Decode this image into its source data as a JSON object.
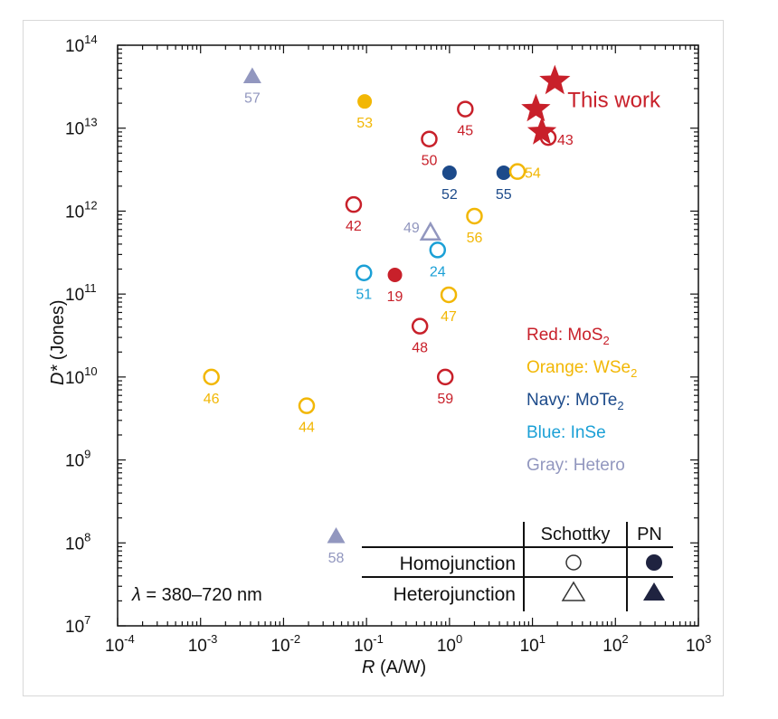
{
  "chart_data": {
    "type": "scatter",
    "xlabel": "R (A/W)",
    "xlabel_var": "R",
    "xlabel_unit": " (A/W)",
    "ylabel_var": "D*",
    "ylabel_unit": " (Jones)",
    "xscale": "log",
    "yscale": "log",
    "xlim": [
      0.0001,
      1000
    ],
    "ylim": [
      10000000.0,
      100000000000000.0
    ],
    "x_ticks": [
      -4,
      -3,
      -2,
      -1,
      0,
      1,
      2,
      3
    ],
    "y_ticks": [
      7,
      8,
      9,
      10,
      11,
      12,
      13,
      14
    ],
    "grid": false,
    "colors": {
      "red": "#c8202a",
      "orange": "#f2b705",
      "navy": "#1c4a8a",
      "blue": "#1ba0d6",
      "gray": "#9297bf",
      "legend": "#1f2340"
    },
    "points": [
      {
        "label": "57",
        "x": 0.0042,
        "y": 42000000000000.0,
        "color": "gray",
        "shape": "triangle",
        "filled": true
      },
      {
        "label": "53",
        "x": 0.095,
        "y": 21000000000000.0,
        "color": "orange",
        "shape": "circle",
        "filled": true
      },
      {
        "label": "45",
        "x": 1.55,
        "y": 17000000000000.0,
        "color": "red",
        "shape": "circle",
        "filled": false
      },
      {
        "label": "50",
        "x": 0.57,
        "y": 7400000000000.0,
        "color": "red",
        "shape": "circle",
        "filled": false
      },
      {
        "label": "52",
        "x": 1.0,
        "y": 2900000000000.0,
        "color": "navy",
        "shape": "circle",
        "filled": true
      },
      {
        "label": "55",
        "x": 4.5,
        "y": 2900000000000.0,
        "color": "navy",
        "shape": "circle",
        "filled": true
      },
      {
        "label": "54",
        "x": 6.6,
        "y": 3000000000000.0,
        "color": "orange",
        "shape": "circle",
        "filled": false
      },
      {
        "label": "43",
        "x": 15.5,
        "y": 7700000000000.0,
        "color": "red",
        "shape": "circle",
        "filled": false
      },
      {
        "label": "42",
        "x": 0.07,
        "y": 1200000000000.0,
        "color": "red",
        "shape": "circle",
        "filled": false
      },
      {
        "label": "56",
        "x": 2.0,
        "y": 870000000000.0,
        "color": "orange",
        "shape": "circle",
        "filled": false
      },
      {
        "label": "49",
        "x": 0.59,
        "y": 550000000000.0,
        "color": "gray",
        "shape": "triangle",
        "filled": false
      },
      {
        "label": "24",
        "x": 0.72,
        "y": 340000000000.0,
        "color": "blue",
        "shape": "circle",
        "filled": false
      },
      {
        "label": "51",
        "x": 0.093,
        "y": 180000000000.0,
        "color": "blue",
        "shape": "circle",
        "filled": false
      },
      {
        "label": "19",
        "x": 0.22,
        "y": 170000000000.0,
        "color": "red",
        "shape": "circle",
        "filled": true
      },
      {
        "label": "47",
        "x": 0.98,
        "y": 98000000000.0,
        "color": "orange",
        "shape": "circle",
        "filled": false
      },
      {
        "label": "48",
        "x": 0.44,
        "y": 41000000000.0,
        "color": "red",
        "shape": "circle",
        "filled": false
      },
      {
        "label": "59",
        "x": 0.89,
        "y": 10000000000.0,
        "color": "red",
        "shape": "circle",
        "filled": false
      },
      {
        "label": "46",
        "x": 0.00135,
        "y": 10000000000.0,
        "color": "orange",
        "shape": "circle",
        "filled": false
      },
      {
        "label": "44",
        "x": 0.019,
        "y": 4500000000.0,
        "color": "orange",
        "shape": "circle",
        "filled": false
      },
      {
        "label": "58",
        "x": 0.043,
        "y": 120000000.0,
        "color": "gray",
        "shape": "triangle",
        "filled": true
      }
    ],
    "this_work": {
      "label": "This work",
      "color": "red",
      "shape": "star",
      "points": [
        {
          "x": 18.6,
          "y": 37000000000000.0
        },
        {
          "x": 11,
          "y": 17000000000000.0
        },
        {
          "x": 13,
          "y": 9000000000000.0
        }
      ]
    },
    "color_legend": [
      {
        "prefix": "Red: ",
        "material": "MoS",
        "sub": "2",
        "color": "red"
      },
      {
        "prefix": "Orange: ",
        "material": "WSe",
        "sub": "2",
        "color": "orange"
      },
      {
        "prefix": "Navy: ",
        "material": "MoTe",
        "sub": "2",
        "color": "navy"
      },
      {
        "prefix": "Blue: ",
        "material": "InSe",
        "sub": "",
        "color": "blue"
      },
      {
        "prefix": "Gray: ",
        "material": "Hetero",
        "sub": "",
        "color": "gray"
      }
    ],
    "shape_legend": {
      "col_headers": [
        "Schottky",
        "PN"
      ],
      "row_headers": [
        "Homojunction",
        "Heterojunction"
      ]
    },
    "annotation": {
      "symbol": "λ",
      "text": " = 380–720 nm"
    }
  }
}
